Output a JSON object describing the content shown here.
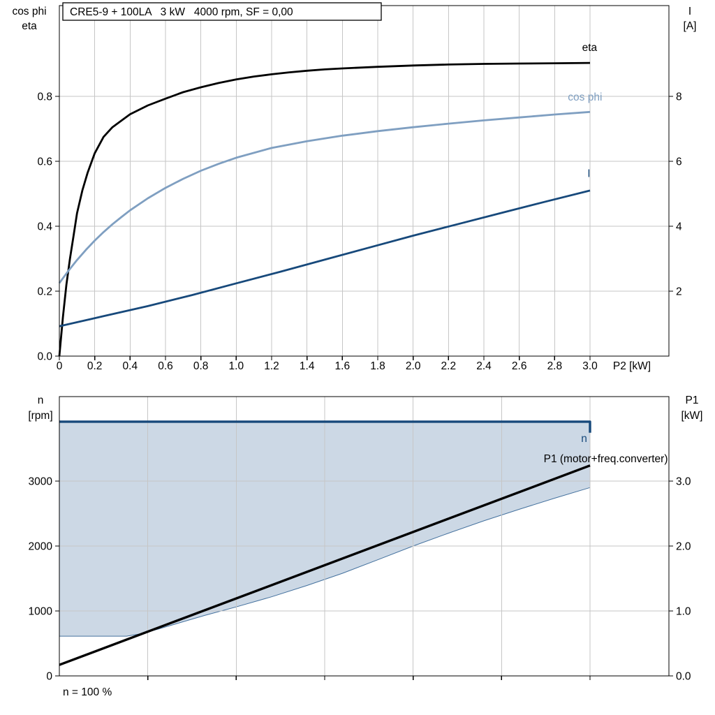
{
  "header": {
    "title": "CRE5-9 + 100LA   3 kW   4000 rpm, SF = 0,00"
  },
  "colors": {
    "black": "#000000",
    "dark_blue": "#17497b",
    "light_blue": "#7f9fc1",
    "area_fill": "#ccd8e5",
    "area_stroke": "#44719e",
    "grid": "#c6c6c6"
  },
  "top_chart": {
    "left_axis_title_line1": "cos phi",
    "left_axis_title_line2": "eta",
    "right_axis_title_line1": "I",
    "right_axis_title_line2": "[A]",
    "x_axis_title": "P2 [kW]"
  },
  "bottom_chart": {
    "left_axis_title_line1": "n",
    "left_axis_title_line2": "[rpm]",
    "right_axis_title_line1": "P1",
    "right_axis_title_line2": "[kW]",
    "footnote": "n = 100 %"
  },
  "chart_data": [
    {
      "id": "top",
      "type": "line",
      "title": "CRE5-9 + 100LA 3 kW 4000 rpm, SF = 0,00",
      "xlabel": "P2 [kW]",
      "ylabel_left": "cos phi / eta",
      "ylabel_right": "I [A]",
      "x_range": [
        0,
        3.446
      ],
      "x_ticks": {
        "values": [
          0,
          0.2,
          0.4,
          0.6,
          0.8,
          1.0,
          1.2,
          1.4,
          1.6,
          1.8,
          2.0,
          2.2,
          2.4,
          2.6,
          2.8,
          3.0
        ],
        "labels": [
          "0",
          "0.2",
          "0.4",
          "0.6",
          "0.8",
          "1.0",
          "1.2",
          "1.4",
          "1.6",
          "1.8",
          "2.0",
          "2.2",
          "2.4",
          "2.6",
          "2.8",
          "3.0"
        ]
      },
      "x_grid": [
        0.2,
        0.4,
        0.6,
        0.8,
        1.0,
        1.2,
        1.4,
        1.6,
        1.8,
        2.0,
        2.2,
        2.4,
        2.6,
        2.8,
        3.0
      ],
      "y_grid": [
        0.2,
        0.4,
        0.6,
        0.8
      ],
      "left_axis": {
        "label": "cos phi / eta",
        "range": [
          0,
          1.0796
        ],
        "ticks": {
          "values": [
            0,
            0.2,
            0.4,
            0.6,
            0.8
          ],
          "labels": [
            "0.0",
            "0.2",
            "0.4",
            "0.6",
            "0.8"
          ]
        }
      },
      "right_axis": {
        "label": "I [A]",
        "range": [
          0,
          10.796
        ],
        "ticks": {
          "values": [
            2,
            4,
            6,
            8
          ],
          "labels": [
            "2",
            "4",
            "6",
            "8"
          ]
        }
      },
      "series": [
        {
          "name": "eta",
          "axis": "left",
          "color": "#000000",
          "width": 2.8,
          "label": {
            "pos": [
              2.955,
              0.94
            ],
            "anchor": "start"
          },
          "points": [
            [
              0,
              0
            ],
            [
              0.02,
              0.12
            ],
            [
              0.04,
              0.22
            ],
            [
              0.06,
              0.3
            ],
            [
              0.08,
              0.37
            ],
            [
              0.1,
              0.44
            ],
            [
              0.13,
              0.51
            ],
            [
              0.16,
              0.565
            ],
            [
              0.2,
              0.625
            ],
            [
              0.25,
              0.675
            ],
            [
              0.3,
              0.705
            ],
            [
              0.35,
              0.725
            ],
            [
              0.4,
              0.745
            ],
            [
              0.5,
              0.772
            ],
            [
              0.6,
              0.793
            ],
            [
              0.7,
              0.813
            ],
            [
              0.8,
              0.828
            ],
            [
              0.9,
              0.841
            ],
            [
              1.0,
              0.852
            ],
            [
              1.1,
              0.861
            ],
            [
              1.2,
              0.868
            ],
            [
              1.3,
              0.874
            ],
            [
              1.4,
              0.879
            ],
            [
              1.5,
              0.883
            ],
            [
              1.6,
              0.886
            ],
            [
              1.8,
              0.891
            ],
            [
              2.0,
              0.895
            ],
            [
              2.2,
              0.898
            ],
            [
              2.4,
              0.9
            ],
            [
              2.6,
              0.901
            ],
            [
              2.8,
              0.902
            ],
            [
              3.0,
              0.903
            ]
          ]
        },
        {
          "name": "cos phi",
          "axis": "left",
          "color": "#7f9fc1",
          "width": 2.8,
          "label": {
            "pos": [
              2.875,
              0.787
            ],
            "anchor": "start"
          },
          "points": [
            [
              0,
              0.225
            ],
            [
              0.05,
              0.262
            ],
            [
              0.1,
              0.296
            ],
            [
              0.15,
              0.327
            ],
            [
              0.2,
              0.356
            ],
            [
              0.25,
              0.382
            ],
            [
              0.3,
              0.406
            ],
            [
              0.35,
              0.428
            ],
            [
              0.4,
              0.449
            ],
            [
              0.5,
              0.486
            ],
            [
              0.6,
              0.518
            ],
            [
              0.7,
              0.546
            ],
            [
              0.8,
              0.571
            ],
            [
              0.9,
              0.592
            ],
            [
              1.0,
              0.611
            ],
            [
              1.2,
              0.641
            ],
            [
              1.4,
              0.662
            ],
            [
              1.6,
              0.679
            ],
            [
              1.8,
              0.693
            ],
            [
              2.0,
              0.705
            ],
            [
              2.2,
              0.716
            ],
            [
              2.4,
              0.726
            ],
            [
              2.6,
              0.735
            ],
            [
              2.8,
              0.744
            ],
            [
              3.0,
              0.752
            ]
          ]
        },
        {
          "name": "I",
          "axis": "right",
          "color": "#17497b",
          "width": 2.8,
          "label": {
            "pos": [
              2.985,
              5.52
            ],
            "anchor": "start"
          },
          "points": [
            [
              0,
              0.92
            ],
            [
              0.25,
              1.23
            ],
            [
              0.5,
              1.54
            ],
            [
              0.75,
              1.88
            ],
            [
              1.0,
              2.24
            ],
            [
              1.25,
              2.6
            ],
            [
              1.5,
              2.97
            ],
            [
              1.75,
              3.34
            ],
            [
              2.0,
              3.71
            ],
            [
              2.25,
              4.06
            ],
            [
              2.5,
              4.41
            ],
            [
              2.75,
              4.76
            ],
            [
              3.0,
              5.1
            ]
          ]
        }
      ]
    },
    {
      "id": "bottom",
      "type": "line",
      "ylabel_left": "n [rpm]",
      "ylabel_right": "P1 [kW]",
      "x_range": [
        0,
        3.446
      ],
      "x_ticks": {
        "values": [
          0.5,
          1.0,
          1.5,
          2.0,
          2.5,
          3.0
        ],
        "labels": []
      },
      "x_grid": [
        0.5,
        1.0,
        1.5,
        2.0,
        2.5,
        3.0
      ],
      "y_grid": [
        1000,
        2000,
        3000
      ],
      "left_axis": {
        "label": "n [rpm]",
        "range": [
          0,
          4301
        ],
        "ticks": {
          "values": [
            0,
            1000,
            2000,
            3000
          ],
          "labels": [
            "0",
            "1000",
            "2000",
            "3000"
          ]
        }
      },
      "right_axis": {
        "label": "P1 [kW]",
        "range": [
          0,
          4.301
        ],
        "ticks": {
          "values": [
            0,
            1,
            2,
            3
          ],
          "labels": [
            "0.0",
            "1.0",
            "2.0",
            "3.0"
          ]
        }
      },
      "area": {
        "upper": [
          [
            0,
            3915
          ],
          [
            3.0,
            3915
          ]
        ],
        "lower": [
          [
            0,
            612
          ],
          [
            0.38,
            612
          ],
          [
            0.46,
            648
          ],
          [
            0.56,
            722
          ],
          [
            0.68,
            818
          ],
          [
            0.82,
            930
          ],
          [
            1.0,
            1062
          ],
          [
            1.2,
            1218
          ],
          [
            1.4,
            1392
          ],
          [
            1.6,
            1580
          ],
          [
            1.8,
            1788
          ],
          [
            2.0,
            2000
          ],
          [
            2.2,
            2198
          ],
          [
            2.4,
            2388
          ],
          [
            2.6,
            2566
          ],
          [
            2.8,
            2736
          ],
          [
            3.0,
            2900
          ]
        ]
      },
      "series": [
        {
          "name": "n",
          "axis": "left",
          "color": "#17497b",
          "width": 3.4,
          "label": {
            "pos": [
              2.95,
              3600
            ],
            "anchor": "start"
          },
          "points": [
            [
              0,
              3915
            ],
            [
              3.0,
              3915
            ],
            [
              3.0,
              3745
            ]
          ]
        },
        {
          "name": "P1 (motor+freq.converter)",
          "axis": "right",
          "color": "#000000",
          "width": 3.4,
          "label": {
            "pos": [
              3.44,
              3.29
            ],
            "anchor": "end"
          },
          "points": [
            [
              0,
              0.17
            ],
            [
              3.0,
              3.24
            ]
          ]
        }
      ],
      "footnote": "n = 100 %"
    }
  ]
}
